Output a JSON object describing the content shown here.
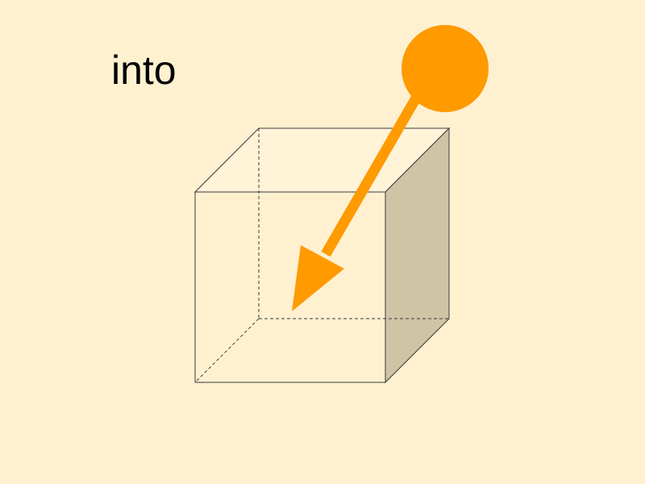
{
  "word": "into",
  "colors": {
    "background": "#fff1d0",
    "ball": "#ff9a00",
    "arrow": "#ff9a00",
    "cube_edge": "#3a3a3a",
    "cube_side_face": "#cfc4a5",
    "cube_top_face": "#fff3d8"
  },
  "icons": {
    "ball": "orange-ball",
    "arrow": "arrow-down-left",
    "container": "transparent-cube"
  }
}
